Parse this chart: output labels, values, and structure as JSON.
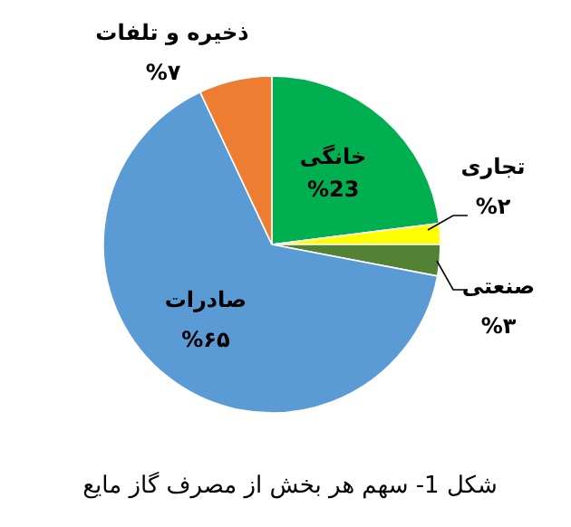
{
  "chart_data": {
    "type": "pie",
    "title": "شکل 1- سهم هر بخش از مصرف گاز مایع",
    "categories": [
      "خانگی",
      "تجاری",
      "صنعتی",
      "صادرات",
      "ذخیره و تلفات"
    ],
    "values": [
      23,
      2,
      3,
      65,
      7
    ],
    "colors": [
      "#00b050",
      "#ffff00",
      "#548235",
      "#5b9bd5",
      "#ed7d31"
    ],
    "value_labels": [
      "%23",
      "%۲",
      "%۳",
      "%۶۵",
      "%۷"
    ]
  }
}
